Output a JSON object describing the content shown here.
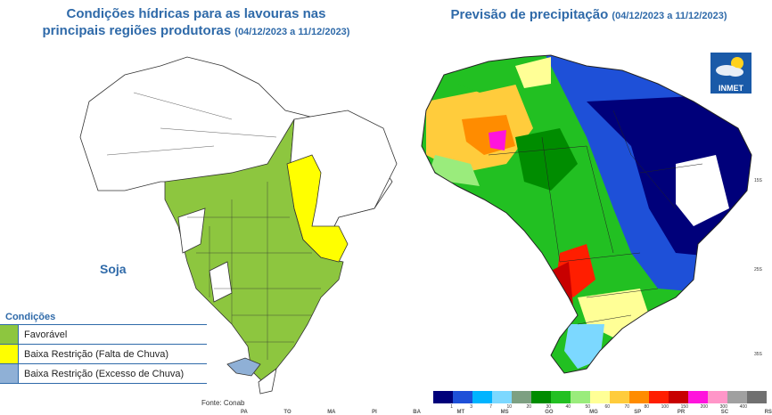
{
  "left_panel": {
    "title_line1": "Condições hídricas para as lavouras nas",
    "title_line2": "principais regiões produtoras",
    "period": "(04/12/2023 a 11/12/2023)",
    "crop_label": "Soja",
    "legend": {
      "title": "Condições",
      "items": [
        {
          "label": "Favorável",
          "color": "#8dc63f"
        },
        {
          "label": "Baixa Restrição (Falta de Chuva)",
          "color": "#ffff00"
        },
        {
          "label": "Baixa Restrição (Excesso de Chuva)",
          "color": "#8fb0d6"
        }
      ]
    },
    "source": "Fonte: Conab"
  },
  "right_panel": {
    "title": "Previsão de precipitação",
    "period": "(04/12/2023 a 11/12/2023)",
    "logo_text": "INMET",
    "colorbar": {
      "colors": [
        "#00007a",
        "#1e50d8",
        "#00b4ff",
        "#7cd8ff",
        "#7da082",
        "#008c00",
        "#22c022",
        "#9aec7c",
        "#ffff96",
        "#ffcc3c",
        "#ff8c00",
        "#ff1e00",
        "#c80000",
        "#ff14dc",
        "#ff96c8",
        "#a0a0a0",
        "#707070"
      ],
      "ticks": [
        "1",
        "3",
        "7",
        "10",
        "20",
        "30",
        "40",
        "50",
        "60",
        "70",
        "80",
        "100",
        "150",
        "200",
        "300",
        "400"
      ]
    },
    "state_labels": [
      "PA",
      "TO",
      "MA",
      "PI",
      "BA",
      "MT",
      "MS",
      "GO",
      "MG",
      "SP",
      "PR",
      "SC",
      "RS"
    ],
    "lat_ticks": [
      "15S",
      "25S",
      "35S"
    ]
  }
}
